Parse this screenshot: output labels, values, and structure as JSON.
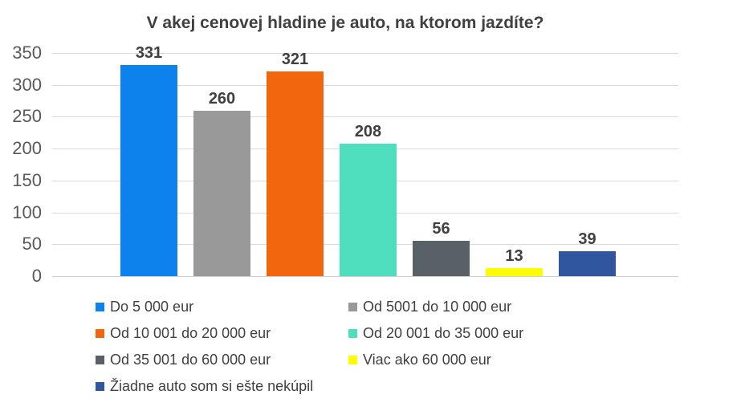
{
  "chart_data": {
    "type": "bar",
    "title": "V akej cenovej hladine je auto, na ktorom jazdíte?",
    "categories": [
      "Do 5 000 eur",
      "Od 5001 do 10 000 eur",
      "Od 10 001 do 20 000 eur",
      "Od 20 001 do 35 000 eur",
      "Od 35 001 do 60 000 eur",
      "Viac ako 60 000 eur",
      "Žiadne auto som si ešte nekúpil"
    ],
    "values": [
      331,
      260,
      321,
      208,
      56,
      13,
      39
    ],
    "bar_colors": [
      "#0d82ed",
      "#999999",
      "#f2670d",
      "#50dfbe",
      "#5a6068",
      "#fdfd00",
      "#30569f"
    ],
    "yticks": [
      0,
      50,
      100,
      150,
      200,
      250,
      300,
      350
    ],
    "ylim": [
      0,
      350
    ],
    "xlabel": "",
    "ylabel": "",
    "grid": true,
    "data_labels": true,
    "legend_position": "bottom"
  },
  "colors": {
    "background": "#ffffff",
    "title_text": "#404040",
    "axis_text": "#595959",
    "data_label_text": "#3f3f3f",
    "legend_text": "#404040",
    "gridline": "#d9d9d9"
  }
}
